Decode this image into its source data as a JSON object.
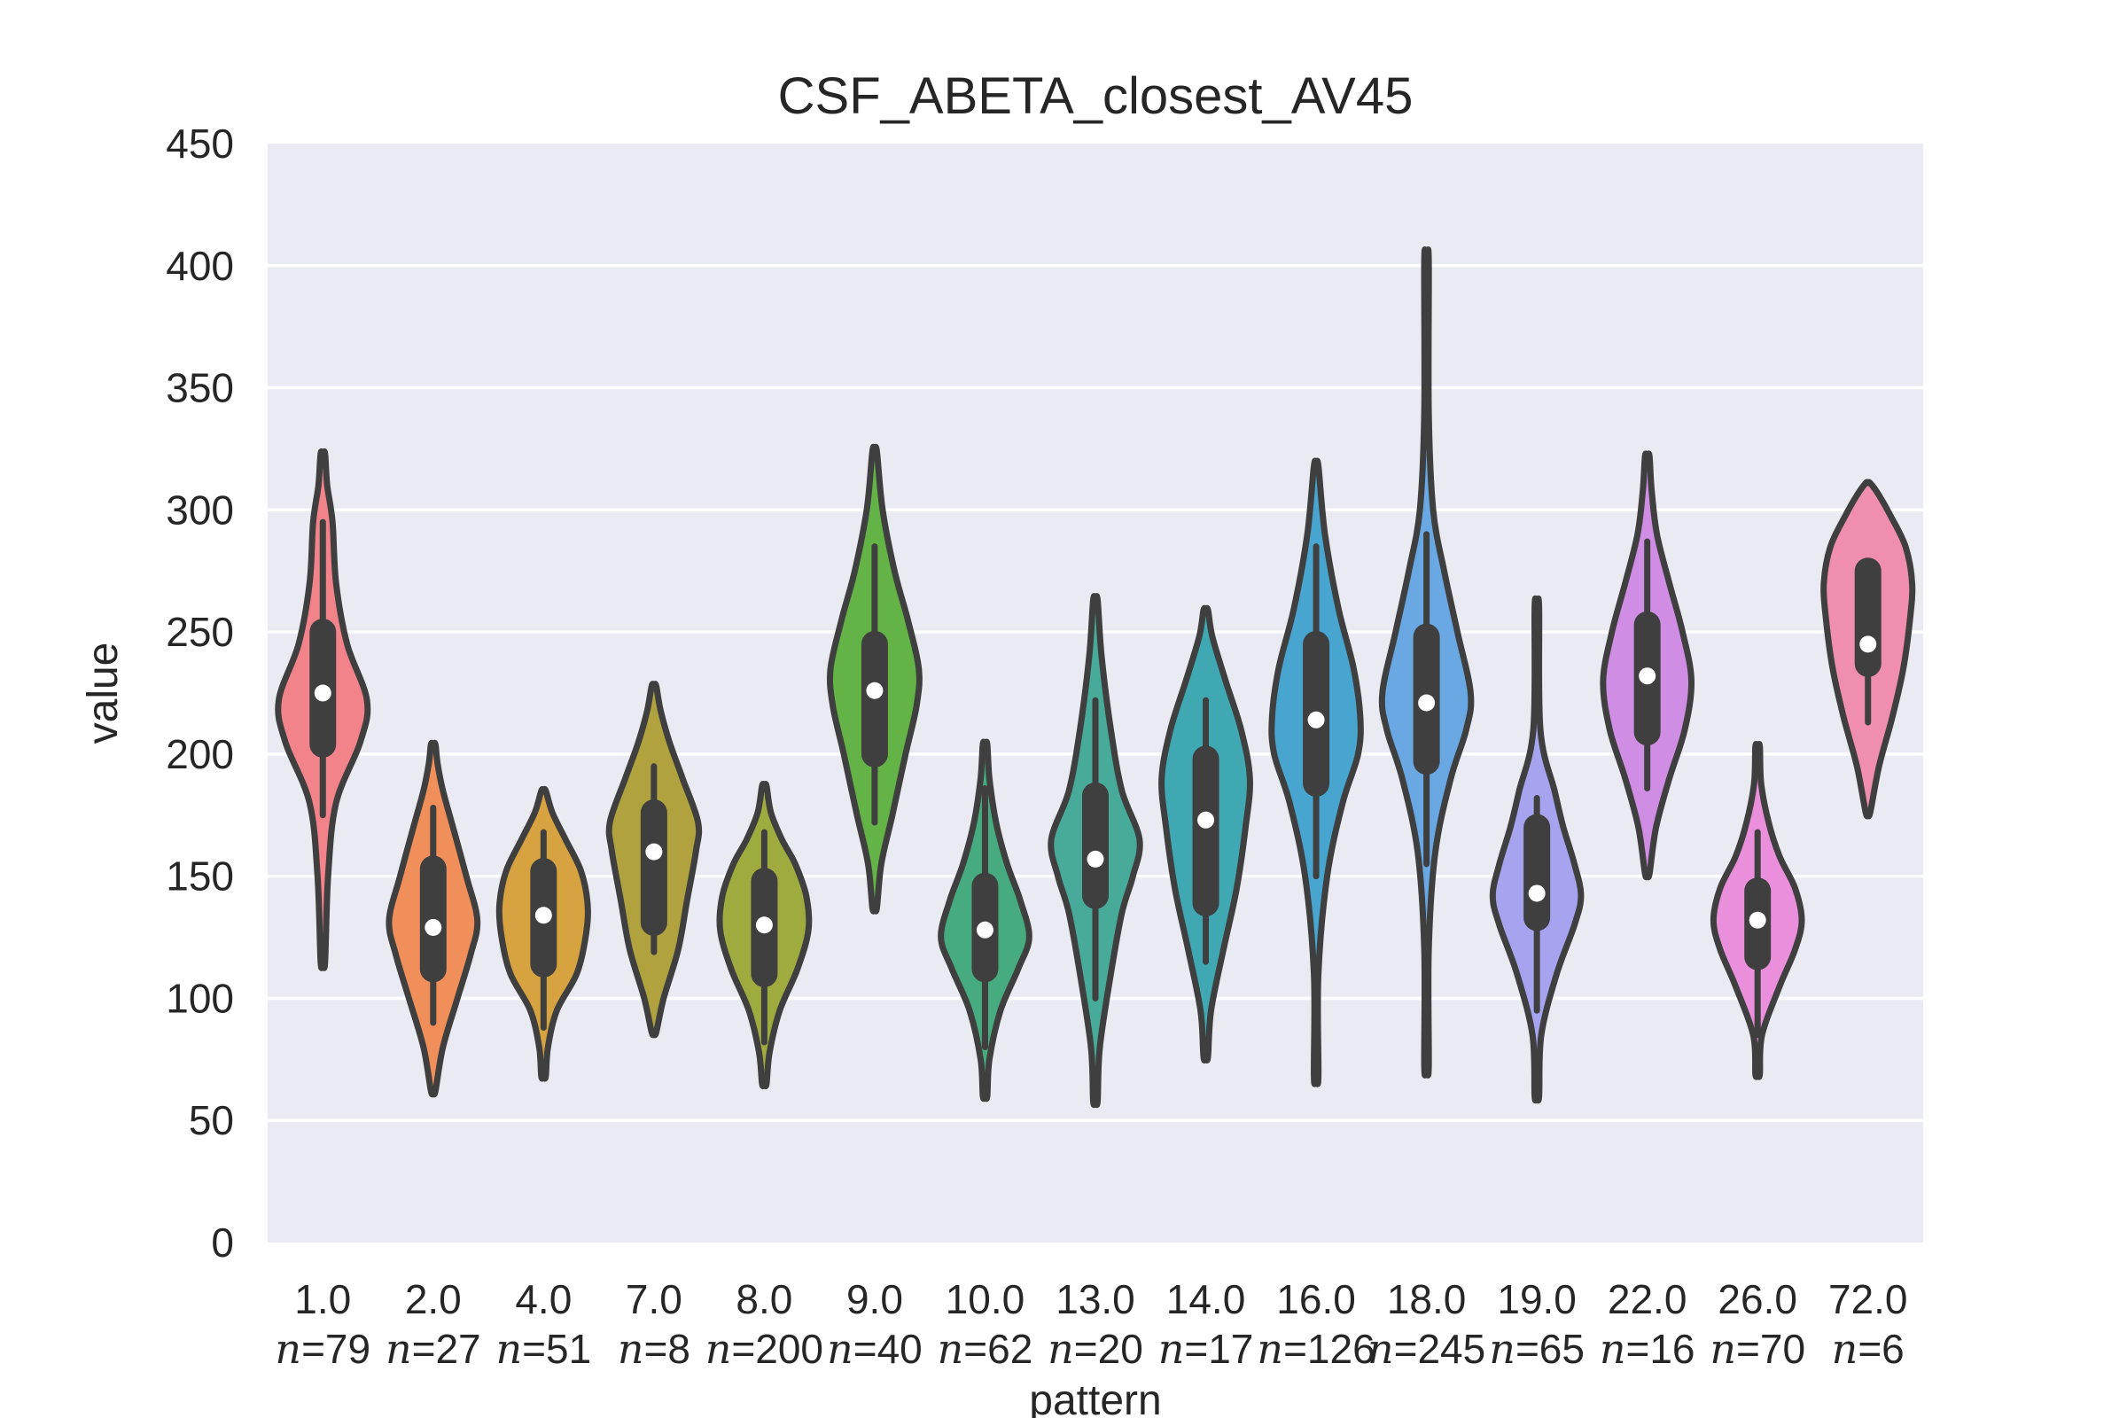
{
  "chart_data": {
    "type": "violin",
    "title": "CSF_ABETA_closest_AV45",
    "xlabel": "pattern",
    "ylabel": "value",
    "ylim": [
      0,
      450
    ],
    "yticks": [
      "0",
      "50",
      "100",
      "150",
      "200",
      "250",
      "300",
      "350",
      "400",
      "450"
    ],
    "grid": true,
    "background": "#eaeaf2",
    "outline_color": "#3f3f3f",
    "n_prefix": "n",
    "categories": [
      {
        "label": "1.0",
        "n_text": "=79",
        "n": 79,
        "color": "#f2838a",
        "min": 115,
        "q1": 204,
        "median": 225,
        "q3": 250,
        "max": 323,
        "whisker_low": 175,
        "whisker_high": 295,
        "profile": [
          [
            115,
            0.05
          ],
          [
            150,
            0.12
          ],
          [
            180,
            0.3
          ],
          [
            205,
            0.85
          ],
          [
            222,
            1.0
          ],
          [
            245,
            0.55
          ],
          [
            270,
            0.3
          ],
          [
            295,
            0.22
          ],
          [
            310,
            0.1
          ],
          [
            323,
            0.03
          ]
        ]
      },
      {
        "label": "2.0",
        "n_text": "=27",
        "n": 27,
        "color": "#f08f5a",
        "min": 62,
        "q1": 112,
        "median": 129,
        "q3": 153,
        "max": 204,
        "whisker_low": 90,
        "whisker_high": 178,
        "profile": [
          [
            62,
            0.04
          ],
          [
            80,
            0.22
          ],
          [
            100,
            0.55
          ],
          [
            118,
            0.85
          ],
          [
            132,
            1.0
          ],
          [
            150,
            0.75
          ],
          [
            170,
            0.45
          ],
          [
            185,
            0.22
          ],
          [
            196,
            0.1
          ],
          [
            204,
            0.03
          ]
        ]
      },
      {
        "label": "4.0",
        "n_text": "=51",
        "n": 51,
        "color": "#d7a340",
        "min": 68,
        "q1": 114,
        "median": 134,
        "q3": 152,
        "max": 185,
        "whisker_low": 88,
        "whisker_high": 168,
        "profile": [
          [
            68,
            0.03
          ],
          [
            80,
            0.1
          ],
          [
            95,
            0.3
          ],
          [
            110,
            0.75
          ],
          [
            125,
            0.95
          ],
          [
            138,
            1.0
          ],
          [
            152,
            0.85
          ],
          [
            165,
            0.5
          ],
          [
            176,
            0.2
          ],
          [
            185,
            0.03
          ]
        ]
      },
      {
        "label": "7.0",
        "n_text": "=8",
        "n": 8,
        "color": "#b0a23e",
        "min": 86,
        "q1": 131,
        "median": 160,
        "q3": 176,
        "max": 228,
        "whisker_low": 119,
        "whisker_high": 195,
        "profile": [
          [
            86,
            0.04
          ],
          [
            100,
            0.22
          ],
          [
            120,
            0.55
          ],
          [
            140,
            0.75
          ],
          [
            160,
            0.95
          ],
          [
            172,
            1.0
          ],
          [
            190,
            0.65
          ],
          [
            205,
            0.35
          ],
          [
            218,
            0.15
          ],
          [
            228,
            0.03
          ]
        ]
      },
      {
        "label": "8.0",
        "n_text": "=200",
        "n": 200,
        "color": "#9faa3f",
        "min": 65,
        "q1": 110,
        "median": 130,
        "q3": 148,
        "max": 187,
        "whisker_low": 82,
        "whisker_high": 168,
        "profile": [
          [
            65,
            0.03
          ],
          [
            78,
            0.12
          ],
          [
            95,
            0.35
          ],
          [
            112,
            0.75
          ],
          [
            128,
            1.0
          ],
          [
            142,
            0.95
          ],
          [
            155,
            0.7
          ],
          [
            165,
            0.4
          ],
          [
            176,
            0.15
          ],
          [
            187,
            0.03
          ]
        ]
      },
      {
        "label": "9.0",
        "n_text": "=40",
        "n": 40,
        "color": "#63b347",
        "min": 137,
        "q1": 200,
        "median": 226,
        "q3": 245,
        "max": 324,
        "whisker_low": 172,
        "whisker_high": 285,
        "profile": [
          [
            137,
            0.04
          ],
          [
            155,
            0.15
          ],
          [
            175,
            0.4
          ],
          [
            200,
            0.7
          ],
          [
            220,
            0.95
          ],
          [
            235,
            1.0
          ],
          [
            255,
            0.75
          ],
          [
            275,
            0.45
          ],
          [
            300,
            0.18
          ],
          [
            324,
            0.03
          ]
        ]
      },
      {
        "label": "10.0",
        "n_text": "=62",
        "n": 62,
        "color": "#46ab7e",
        "min": 60,
        "q1": 112,
        "median": 128,
        "q3": 146,
        "max": 204,
        "whisker_low": 80,
        "whisker_high": 186,
        "profile": [
          [
            60,
            0.03
          ],
          [
            75,
            0.1
          ],
          [
            95,
            0.35
          ],
          [
            112,
            0.75
          ],
          [
            125,
            1.0
          ],
          [
            140,
            0.8
          ],
          [
            155,
            0.5
          ],
          [
            172,
            0.25
          ],
          [
            190,
            0.1
          ],
          [
            204,
            0.03
          ]
        ]
      },
      {
        "label": "13.0",
        "n_text": "=20",
        "n": 20,
        "color": "#48ab9a",
        "min": 58,
        "q1": 142,
        "median": 157,
        "q3": 183,
        "max": 263,
        "whisker_low": 100,
        "whisker_high": 222,
        "profile": [
          [
            58,
            0.03
          ],
          [
            80,
            0.1
          ],
          [
            110,
            0.35
          ],
          [
            135,
            0.6
          ],
          [
            150,
            0.85
          ],
          [
            165,
            1.0
          ],
          [
            185,
            0.6
          ],
          [
            210,
            0.35
          ],
          [
            240,
            0.14
          ],
          [
            263,
            0.03
          ]
        ]
      },
      {
        "label": "14.0",
        "n_text": "=17",
        "n": 17,
        "color": "#3fa8b3",
        "min": 76,
        "q1": 139,
        "median": 173,
        "q3": 198,
        "max": 259,
        "whisker_low": 115,
        "whisker_high": 222,
        "profile": [
          [
            76,
            0.03
          ],
          [
            95,
            0.12
          ],
          [
            120,
            0.4
          ],
          [
            145,
            0.7
          ],
          [
            170,
            0.9
          ],
          [
            190,
            1.0
          ],
          [
            210,
            0.8
          ],
          [
            230,
            0.45
          ],
          [
            248,
            0.15
          ],
          [
            259,
            0.03
          ]
        ]
      },
      {
        "label": "16.0",
        "n_text": "=126",
        "n": 126,
        "color": "#47a5cf",
        "min": 68,
        "q1": 188,
        "median": 214,
        "q3": 245,
        "max": 318,
        "whisker_low": 150,
        "whisker_high": 285,
        "profile": [
          [
            68,
            0.02
          ],
          [
            110,
            0.05
          ],
          [
            150,
            0.25
          ],
          [
            180,
            0.6
          ],
          [
            200,
            0.95
          ],
          [
            215,
            1.0
          ],
          [
            235,
            0.85
          ],
          [
            260,
            0.5
          ],
          [
            290,
            0.2
          ],
          [
            318,
            0.03
          ]
        ]
      },
      {
        "label": "18.0",
        "n_text": "=245",
        "n": 245,
        "color": "#6aa8e4",
        "min": 72,
        "q1": 197,
        "median": 221,
        "q3": 248,
        "max": 402,
        "whisker_low": 155,
        "whisker_high": 290,
        "profile": [
          [
            72,
            0.02
          ],
          [
            120,
            0.05
          ],
          [
            160,
            0.2
          ],
          [
            190,
            0.55
          ],
          [
            210,
            0.9
          ],
          [
            225,
            1.0
          ],
          [
            250,
            0.7
          ],
          [
            275,
            0.4
          ],
          [
            300,
            0.15
          ],
          [
            340,
            0.04
          ],
          [
            402,
            0.01
          ]
        ]
      },
      {
        "label": "19.0",
        "n_text": "=65",
        "n": 65,
        "color": "#a6a4ee",
        "min": 60,
        "q1": 133,
        "median": 143,
        "q3": 170,
        "max": 260,
        "whisker_low": 95,
        "whisker_high": 182,
        "profile": [
          [
            60,
            0.03
          ],
          [
            85,
            0.1
          ],
          [
            110,
            0.45
          ],
          [
            130,
            0.85
          ],
          [
            142,
            1.0
          ],
          [
            155,
            0.85
          ],
          [
            170,
            0.6
          ],
          [
            185,
            0.4
          ],
          [
            210,
            0.08
          ],
          [
            260,
            0.02
          ]
        ]
      },
      {
        "label": "22.0",
        "n_text": "=16",
        "n": 16,
        "color": "#cf8de4",
        "min": 151,
        "q1": 209,
        "median": 232,
        "q3": 253,
        "max": 322,
        "whisker_low": 186,
        "whisker_high": 287,
        "profile": [
          [
            151,
            0.04
          ],
          [
            170,
            0.2
          ],
          [
            190,
            0.5
          ],
          [
            210,
            0.85
          ],
          [
            230,
            1.0
          ],
          [
            250,
            0.8
          ],
          [
            270,
            0.5
          ],
          [
            290,
            0.22
          ],
          [
            308,
            0.1
          ],
          [
            322,
            0.03
          ]
        ]
      },
      {
        "label": "26.0",
        "n_text": "=70",
        "n": 70,
        "color": "#ea8fdc",
        "min": 69,
        "q1": 117,
        "median": 132,
        "q3": 144,
        "max": 203,
        "whisker_low": 85,
        "whisker_high": 168,
        "profile": [
          [
            69,
            0.03
          ],
          [
            85,
            0.1
          ],
          [
            105,
            0.5
          ],
          [
            120,
            0.85
          ],
          [
            132,
            1.0
          ],
          [
            145,
            0.85
          ],
          [
            158,
            0.5
          ],
          [
            172,
            0.25
          ],
          [
            188,
            0.08
          ],
          [
            203,
            0.02
          ]
        ]
      },
      {
        "label": "72.0",
        "n_text": "=6",
        "n": 6,
        "color": "#f08eb0",
        "min": 176,
        "q1": 237,
        "median": 245,
        "q3": 275,
        "max": 311,
        "whisker_low": 213,
        "whisker_high": 277,
        "profile": [
          [
            176,
            0.04
          ],
          [
            195,
            0.25
          ],
          [
            215,
            0.55
          ],
          [
            235,
            0.8
          ],
          [
            255,
            0.95
          ],
          [
            270,
            1.0
          ],
          [
            285,
            0.85
          ],
          [
            298,
            0.5
          ],
          [
            306,
            0.25
          ],
          [
            311,
            0.05
          ]
        ]
      }
    ]
  }
}
